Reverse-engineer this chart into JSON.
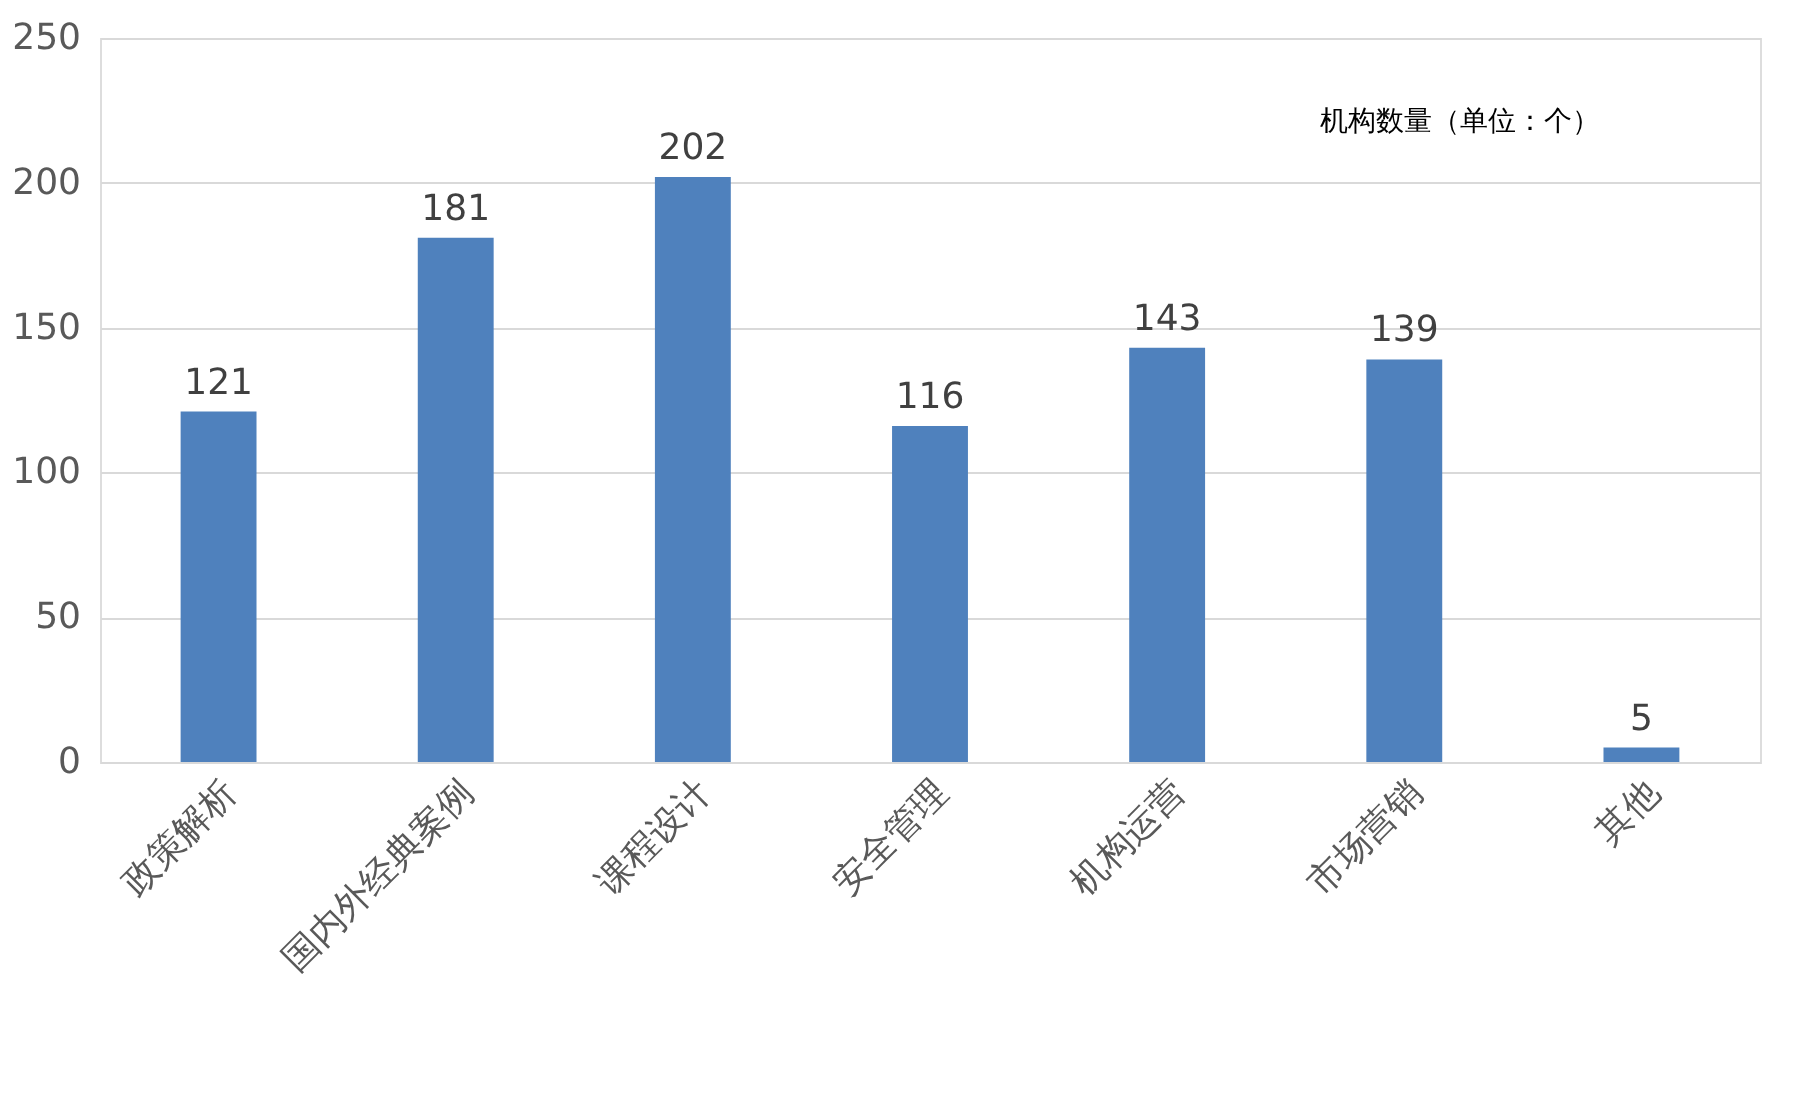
{
  "chart_data": {
    "type": "bar",
    "categories": [
      "政策解析",
      "国内外经典案例",
      "课程设计",
      "安全管理",
      "机构运营",
      "市场营销",
      "其他"
    ],
    "values": [
      121,
      181,
      202,
      116,
      143,
      139,
      5
    ],
    "color": "#4f81bd",
    "ylim": [
      0,
      250
    ],
    "yticks": [
      0,
      50,
      100,
      150,
      200,
      250
    ],
    "grid": "y",
    "data_labels": true,
    "annotations": [
      "机构数量（单位：个）"
    ]
  }
}
